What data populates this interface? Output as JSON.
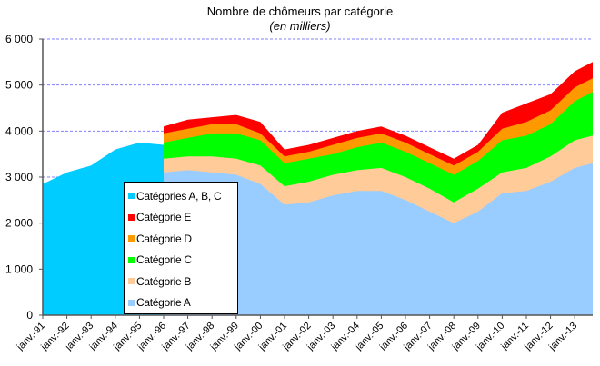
{
  "chart_data": {
    "type": "area",
    "stacked": true,
    "title": "Nombre de chômeurs par catégorie",
    "subtitle": "(en milliers)",
    "xlabel": "",
    "ylabel": "",
    "ylim": [
      0,
      6000
    ],
    "yticks": [
      0,
      1000,
      2000,
      3000,
      4000,
      5000,
      6000
    ],
    "ytick_labels": [
      "0",
      "1 000",
      "2 000",
      "3 000",
      "4 000",
      "5 000",
      "6 000"
    ],
    "grid": "horizontal dashed",
    "legend_position": "inside lower left",
    "categories": [
      "janv.-91",
      "janv.-92",
      "janv.-93",
      "janv.-94",
      "janv.-95",
      "janv.-96",
      "janv.-97",
      "janv.-98",
      "janv.-99",
      "janv.-00",
      "janv.-01",
      "janv.-02",
      "janv.-03",
      "janv.-04",
      "janv.-05",
      "janv.-06",
      "janv.-07",
      "janv.-08",
      "janv.-09",
      "janv.-10",
      "janv.-11",
      "janv.-12",
      "janv.-13"
    ],
    "x_years": [
      1991,
      1992,
      1993,
      1994,
      1995,
      1996,
      1997,
      1998,
      1999,
      2000,
      2001,
      2002,
      2003,
      2004,
      2005,
      2006,
      2007,
      2008,
      2009,
      2010,
      2011,
      2012,
      2013,
      2013.9
    ],
    "series": [
      {
        "name": "Catégories A, B, C",
        "color": "#00CCFF",
        "period": "1991-1996",
        "values": [
          2850,
          3100,
          3250,
          3600,
          3750,
          3700,
          null,
          null,
          null,
          null,
          null,
          null,
          null,
          null,
          null,
          null,
          null,
          null,
          null,
          null,
          null,
          null,
          null,
          null
        ]
      },
      {
        "name": "Catégorie A",
        "color": "#99CCFF",
        "period": "1996-2013",
        "values": [
          null,
          null,
          null,
          null,
          null,
          3100,
          3150,
          3100,
          3050,
          2850,
          2400,
          2450,
          2600,
          2700,
          2700,
          2500,
          2250,
          2000,
          2250,
          2650,
          2700,
          2900,
          3200,
          3300
        ]
      },
      {
        "name": "Catégorie B",
        "color": "#FFCC99",
        "period": "1996-2013",
        "values": [
          null,
          null,
          null,
          null,
          null,
          300,
          300,
          350,
          350,
          400,
          400,
          450,
          450,
          450,
          500,
          500,
          500,
          450,
          500,
          450,
          500,
          550,
          600,
          600
        ]
      },
      {
        "name": "Catégorie C",
        "color": "#00FF00",
        "period": "1996-2013",
        "values": [
          null,
          null,
          null,
          null,
          null,
          350,
          400,
          500,
          550,
          550,
          500,
          500,
          450,
          500,
          550,
          550,
          550,
          600,
          600,
          700,
          700,
          700,
          850,
          950
        ]
      },
      {
        "name": "Catégorie D",
        "color": "#FF9900",
        "period": "1996-2013",
        "values": [
          null,
          null,
          null,
          null,
          null,
          200,
          200,
          200,
          200,
          150,
          150,
          150,
          200,
          200,
          200,
          200,
          200,
          200,
          200,
          250,
          300,
          300,
          300,
          300
        ]
      },
      {
        "name": "Catégorie E",
        "color": "#FF0000",
        "period": "1996-2013",
        "values": [
          null,
          null,
          null,
          null,
          null,
          150,
          200,
          150,
          200,
          250,
          150,
          150,
          150,
          150,
          150,
          150,
          150,
          150,
          150,
          350,
          400,
          350,
          350,
          350
        ]
      }
    ]
  },
  "legend": {
    "items": [
      {
        "label": "Catégories A, B, C",
        "color": "#00CCFF"
      },
      {
        "label": "Catégorie E",
        "color": "#FF0000"
      },
      {
        "label": "Catégorie D",
        "color": "#FF9900"
      },
      {
        "label": "Catégorie C",
        "color": "#00FF00"
      },
      {
        "label": "Catégorie B",
        "color": "#FFCC99"
      },
      {
        "label": "Catégorie A",
        "color": "#99CCFF"
      }
    ]
  }
}
